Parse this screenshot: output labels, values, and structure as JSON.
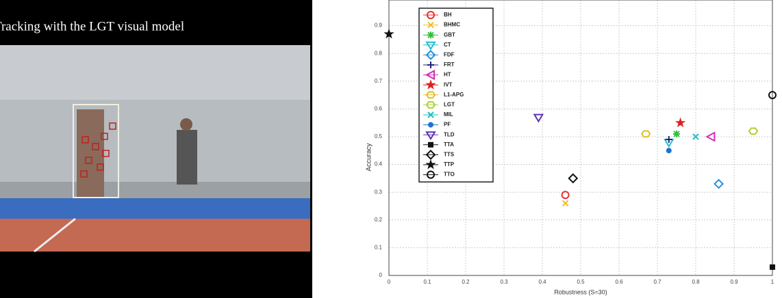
{
  "video": {
    "caption": "Tracking with the LGT visual model"
  },
  "chart_data": {
    "type": "scatter",
    "xlabel": "Robustness (S=30)",
    "ylabel": "Accuracy",
    "xlim": [
      0,
      1
    ],
    "ylim": [
      0,
      1
    ],
    "xticks": [
      0,
      0.1,
      0.2,
      0.3,
      0.4,
      0.5,
      0.6,
      0.7,
      0.8,
      0.9,
      1
    ],
    "yticks": [
      0,
      0.1,
      0.2,
      0.3,
      0.4,
      0.5,
      0.6,
      0.7,
      0.8,
      0.9
    ],
    "grid": true,
    "legend": "upper left",
    "series": [
      {
        "name": "BH",
        "color": "#e53030",
        "marker": "circle",
        "x": [
          0.46
        ],
        "values": [
          0.29
        ]
      },
      {
        "name": "BHMC",
        "color": "#e8c020",
        "marker": "x",
        "x": [
          0.46
        ],
        "values": [
          0.26
        ]
      },
      {
        "name": "GBT",
        "color": "#30c040",
        "marker": "asterisk",
        "x": [
          0.75
        ],
        "values": [
          0.51
        ]
      },
      {
        "name": "CT",
        "color": "#20c0d0",
        "marker": "tri-down",
        "x": [
          0.73
        ],
        "values": [
          0.48
        ]
      },
      {
        "name": "FDF",
        "color": "#2090e0",
        "marker": "diamond",
        "x": [
          0.86
        ],
        "values": [
          0.33
        ]
      },
      {
        "name": "FRT",
        "color": "#202080",
        "marker": "plus",
        "x": [
          0.73
        ],
        "values": [
          0.49
        ]
      },
      {
        "name": "HT",
        "color": "#d030b0",
        "marker": "tri-left",
        "x": [
          0.84
        ],
        "values": [
          0.5
        ]
      },
      {
        "name": "IVT",
        "color": "#e02020",
        "marker": "star",
        "x": [
          0.76
        ],
        "values": [
          0.55
        ]
      },
      {
        "name": "L1-APG",
        "color": "#e0c020",
        "marker": "hexagon",
        "x": [
          0.67
        ],
        "values": [
          0.51
        ]
      },
      {
        "name": "LGT",
        "color": "#b0d030",
        "marker": "hexagon",
        "x": [
          0.95
        ],
        "values": [
          0.52
        ]
      },
      {
        "name": "MIL",
        "color": "#20c0c0",
        "marker": "x",
        "x": [
          0.8
        ],
        "values": [
          0.5
        ]
      },
      {
        "name": "PF",
        "color": "#2070d0",
        "marker": "dot",
        "x": [
          0.73
        ],
        "values": [
          0.45
        ]
      },
      {
        "name": "TLD",
        "color": "#6030b0",
        "marker": "tri-down",
        "x": [
          0.39
        ],
        "values": [
          0.57
        ]
      },
      {
        "name": "TTA",
        "color": "#111111",
        "marker": "square",
        "x": [
          1
        ],
        "values": [
          0.03
        ]
      },
      {
        "name": "TTS",
        "color": "#111111",
        "marker": "diamond",
        "x": [
          0.48
        ],
        "values": [
          0.35
        ]
      },
      {
        "name": "TTP",
        "color": "#111111",
        "marker": "star",
        "x": [
          0
        ],
        "values": [
          0.87
        ]
      },
      {
        "name": "TTO",
        "color": "#111111",
        "marker": "circle",
        "x": [
          1
        ],
        "values": [
          0.65
        ]
      }
    ]
  }
}
